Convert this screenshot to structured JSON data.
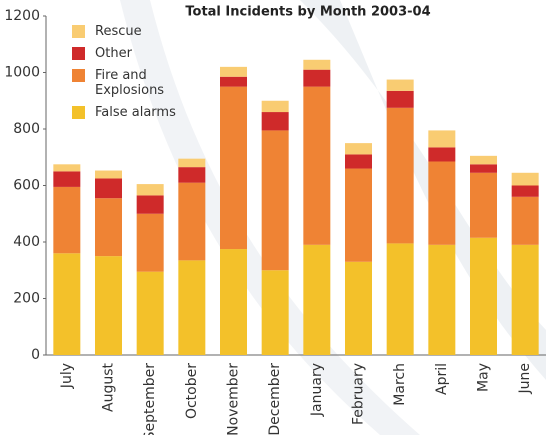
{
  "chart_data": {
    "type": "stacked_bar",
    "title": "Total Incidents by Month 2003-04",
    "categories": [
      "July",
      "August",
      "September",
      "October",
      "November",
      "December",
      "January",
      "February",
      "March",
      "April",
      "May",
      "June"
    ],
    "series": [
      {
        "name": "False alarms",
        "color": "#f3c12a",
        "values": [
          360,
          350,
          295,
          335,
          375,
          300,
          390,
          330,
          395,
          390,
          415,
          390
        ]
      },
      {
        "name": "Fire and Explosions",
        "color": "#ef8334",
        "values": [
          235,
          205,
          205,
          275,
          575,
          495,
          560,
          330,
          480,
          295,
          230,
          170
        ]
      },
      {
        "name": "Other",
        "color": "#cf2a2a",
        "values": [
          55,
          70,
          65,
          55,
          35,
          65,
          60,
          50,
          60,
          50,
          30,
          40
        ]
      },
      {
        "name": "Rescue",
        "color": "#f9cc72",
        "values": [
          25,
          28,
          40,
          30,
          35,
          40,
          35,
          40,
          40,
          60,
          30,
          45
        ]
      }
    ],
    "ylim": [
      0,
      1200
    ],
    "yticks": [
      0,
      200,
      400,
      600,
      800,
      1000,
      1200
    ],
    "grid": false
  }
}
